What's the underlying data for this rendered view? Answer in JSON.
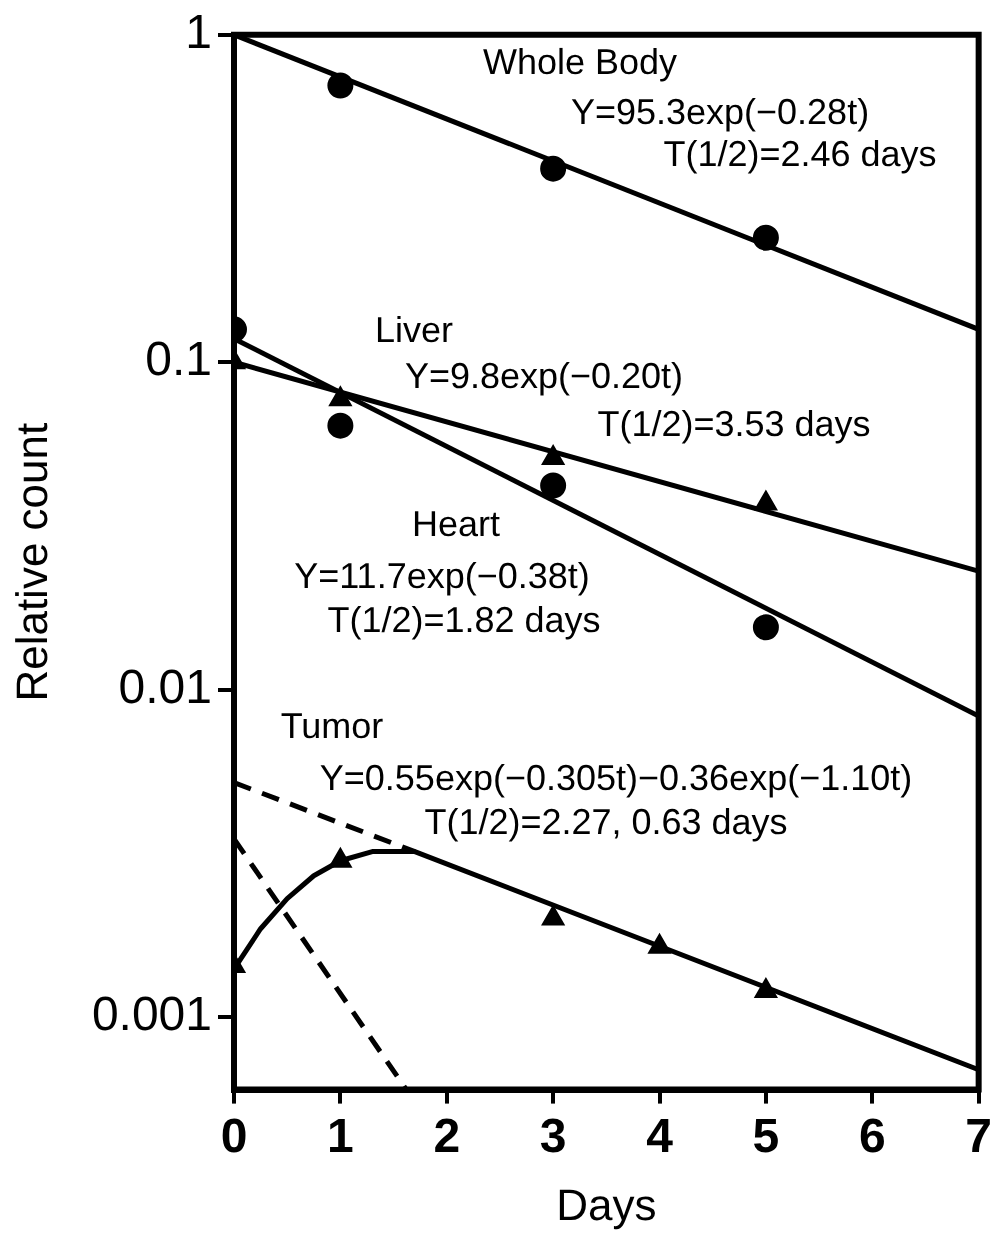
{
  "chart_data": {
    "type": "line",
    "xlabel": "Days",
    "ylabel": "Relative count",
    "log": "y",
    "grid": false,
    "legend": false,
    "xlim": [
      0,
      7
    ],
    "xticks": [
      0,
      1,
      2,
      3,
      4,
      5,
      6,
      7
    ],
    "ylim": [
      0.0006,
      1
    ],
    "yticks": [
      1,
      0.1,
      0.01,
      0.001
    ],
    "series": [
      {
        "type": "scatter",
        "marker": "circle",
        "color": "#000000",
        "x": [
          1,
          3,
          5
        ],
        "values": [
          0.7,
          0.39,
          0.24
        ]
      },
      {
        "type": "line",
        "marker": "none",
        "line_style": "solid",
        "color": "#000000",
        "x": [
          0,
          7
        ],
        "values": [
          1,
          0.126
        ]
      },
      {
        "type": "scatter",
        "marker": "triangle",
        "color": "#000000",
        "x": [
          0,
          1,
          3,
          5
        ],
        "values": [
          0.1,
          0.077,
          0.051,
          0.037
        ]
      },
      {
        "type": "line",
        "marker": "none",
        "line_style": "solid",
        "color": "#000000",
        "x": [
          0,
          7
        ],
        "values": [
          0.1,
          0.023
        ]
      },
      {
        "type": "scatter",
        "marker": "circle",
        "color": "#000000",
        "x": [
          0,
          1,
          3,
          5
        ],
        "values": [
          0.126,
          0.064,
          0.042,
          0.0155
        ]
      },
      {
        "type": "line",
        "marker": "none",
        "line_style": "solid",
        "color": "#000000",
        "x": [
          0,
          7
        ],
        "values": [
          0.118,
          0.0083
        ]
      },
      {
        "type": "scatter",
        "marker": "triangle",
        "color": "#000000",
        "x": [
          0,
          1,
          3,
          4,
          5
        ],
        "values": [
          0.00143,
          0.003,
          0.002,
          0.00164,
          0.0012
        ]
      },
      {
        "type": "line",
        "marker": "none",
        "line_style": "solid",
        "color": "#000000",
        "x": [
          0,
          0.25,
          0.5,
          0.75,
          1,
          1.3,
          1.7,
          7
        ],
        "values": [
          0.0014,
          0.00186,
          0.0023,
          0.0027,
          0.003,
          0.0032,
          0.0032,
          0.00069
        ]
      },
      {
        "type": "line",
        "marker": "none",
        "line_style": "dashed",
        "color": "#000000",
        "x": [
          0,
          1.7
        ],
        "values": [
          0.0052,
          0.0032
        ]
      },
      {
        "type": "line",
        "marker": "none",
        "line_style": "dashed",
        "color": "#000000",
        "x": [
          0,
          1.62
        ],
        "values": [
          0.0035,
          0.0006
        ]
      }
    ],
    "annotations": [
      "Whole Body",
      "Y=95.3exp(−0.28t)",
      "T(1/2)=2.46 days",
      "Liver",
      "Y=9.8exp(−0.20t)",
      "T(1/2)=3.53 days",
      "Heart",
      "Y=11.7exp(−0.38t)",
      "T(1/2)=1.82 days",
      "Tumor",
      "Y=0.55exp(−0.305t)−0.36exp(−1.10t)",
      "T(1/2)=2.27, 0.63 days"
    ]
  }
}
